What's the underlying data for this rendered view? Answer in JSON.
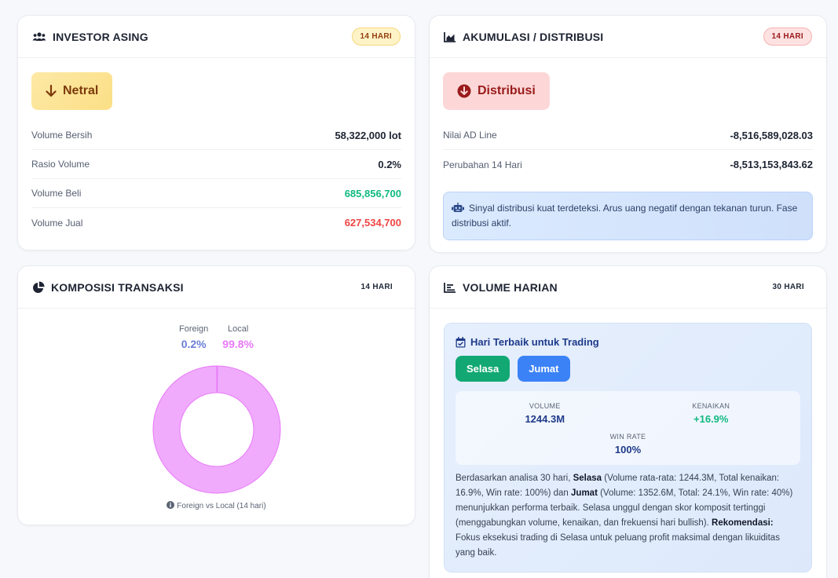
{
  "investor": {
    "title": "INVESTOR ASING",
    "badge": "14 HARI",
    "signal": "Netral",
    "rows": [
      {
        "label": "Volume Bersih",
        "value": "58,322,000 lot"
      },
      {
        "label": "Rasio Volume",
        "value": "0.2%"
      },
      {
        "label": "Volume Beli",
        "value": "685,856,700"
      },
      {
        "label": "Volume Jual",
        "value": "627,534,700"
      }
    ]
  },
  "akumulasi": {
    "title": "AKUMULASI / DISTRIBUSI",
    "badge": "14 HARI",
    "signal": "Distribusi",
    "rows": [
      {
        "label": "Nilai AD Line",
        "value": "-8,516,589,028.03"
      },
      {
        "label": "Perubahan 14 Hari",
        "value": "-8,513,153,843.62"
      }
    ],
    "alert": "Sinyal distribusi kuat terdeteksi. Arus uang negatif dengan tekanan turun. Fase distribusi aktif."
  },
  "komposisi": {
    "title": "KOMPOSISI TRANSAKSI",
    "badge": "14 HARI",
    "caption": "Foreign vs Local (14 hari)",
    "colors": {
      "foreign": "#6b7fd7",
      "local": "#e879f9",
      "local_fill": "#f0abfc"
    }
  },
  "chart_data": {
    "type": "pie",
    "categories": [
      "Foreign",
      "Local"
    ],
    "values": [
      0.2,
      99.8
    ],
    "labels": [
      "0.2%",
      "99.8%"
    ],
    "donut": true,
    "legend": "top"
  },
  "volume": {
    "title": "VOLUME HARIAN",
    "badge": "30 HARI",
    "best_title": "Hari Terbaik untuk Trading",
    "days": [
      "Selasa",
      "Jumat"
    ],
    "stats": {
      "volume_label": "VOLUME",
      "volume_value": "1244.3M",
      "kenaikan_label": "KENAIKAN",
      "kenaikan_value": "+16.9%",
      "winrate_label": "WIN RATE",
      "winrate_value": "100%"
    },
    "desc": {
      "p1": "Berdasarkan analisa 30 hari, ",
      "b1": "Selasa",
      "p2": " (Volume rata-rata: 1244.3M, Total kenaikan: 16.9%, Win rate: 100%) dan ",
      "b2": "Jumat",
      "p3": " (Volume: 1352.6M, Total: 24.1%, Win rate: 40%) menunjukkan performa terbaik. Selasa unggul dengan skor komposit tertinggi (menggabungkan volume, kenaikan, dan frekuensi hari bullish). ",
      "b3": "Rekomendasi:",
      "p4": " Fokus eksekusi trading di Selasa untuk peluang profit maksimal dengan likuiditas yang baik."
    }
  }
}
